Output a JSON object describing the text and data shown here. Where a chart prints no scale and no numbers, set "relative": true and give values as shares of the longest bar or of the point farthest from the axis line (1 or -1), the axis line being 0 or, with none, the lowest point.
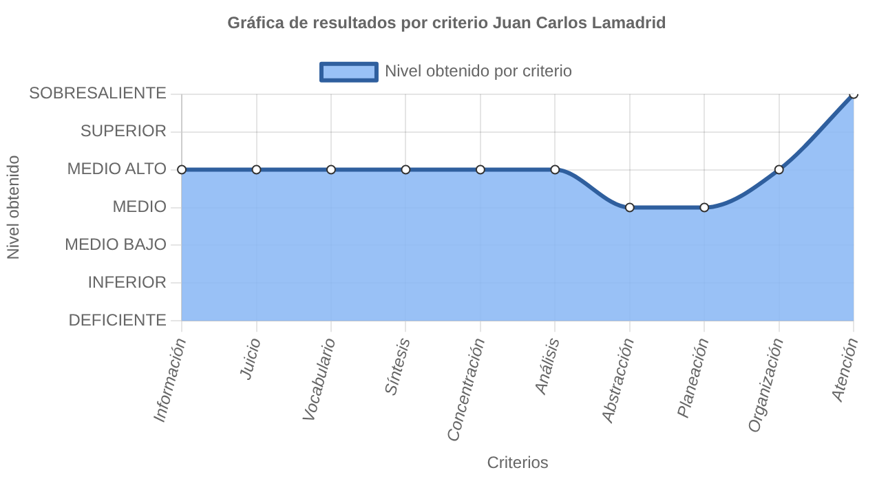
{
  "chart_data": {
    "type": "area",
    "title": "Gráfica de resultados por criterio Juan Carlos Lamadrid",
    "xlabel": "Criterios",
    "annotations": [
      "Nivel obtenido"
    ],
    "categories": [
      "Información",
      "Juicio",
      "Vocabulario",
      "Síntesis",
      "Concentración",
      "Análisis",
      "Abstracción",
      "Planeación",
      "Organización",
      "Atención"
    ],
    "series": [
      {
        "name": "Nivel obtenido por criterio",
        "color": "#89b8f5",
        "values": [
          0.667,
          0.667,
          0.667,
          0.667,
          0.667,
          0.667,
          0.5,
          0.5,
          0.667,
          1
        ]
      }
    ],
    "relative": true,
    "y_categories": [
      "SOBRESALIENTE",
      "SUPERIOR",
      "MEDIO ALTO",
      "MEDIO",
      "MEDIO BAJO",
      "INFERIOR",
      "DEFICIENTE"
    ],
    "grid": true,
    "legend": "top",
    "marker": "circle",
    "line_style": "solid"
  }
}
